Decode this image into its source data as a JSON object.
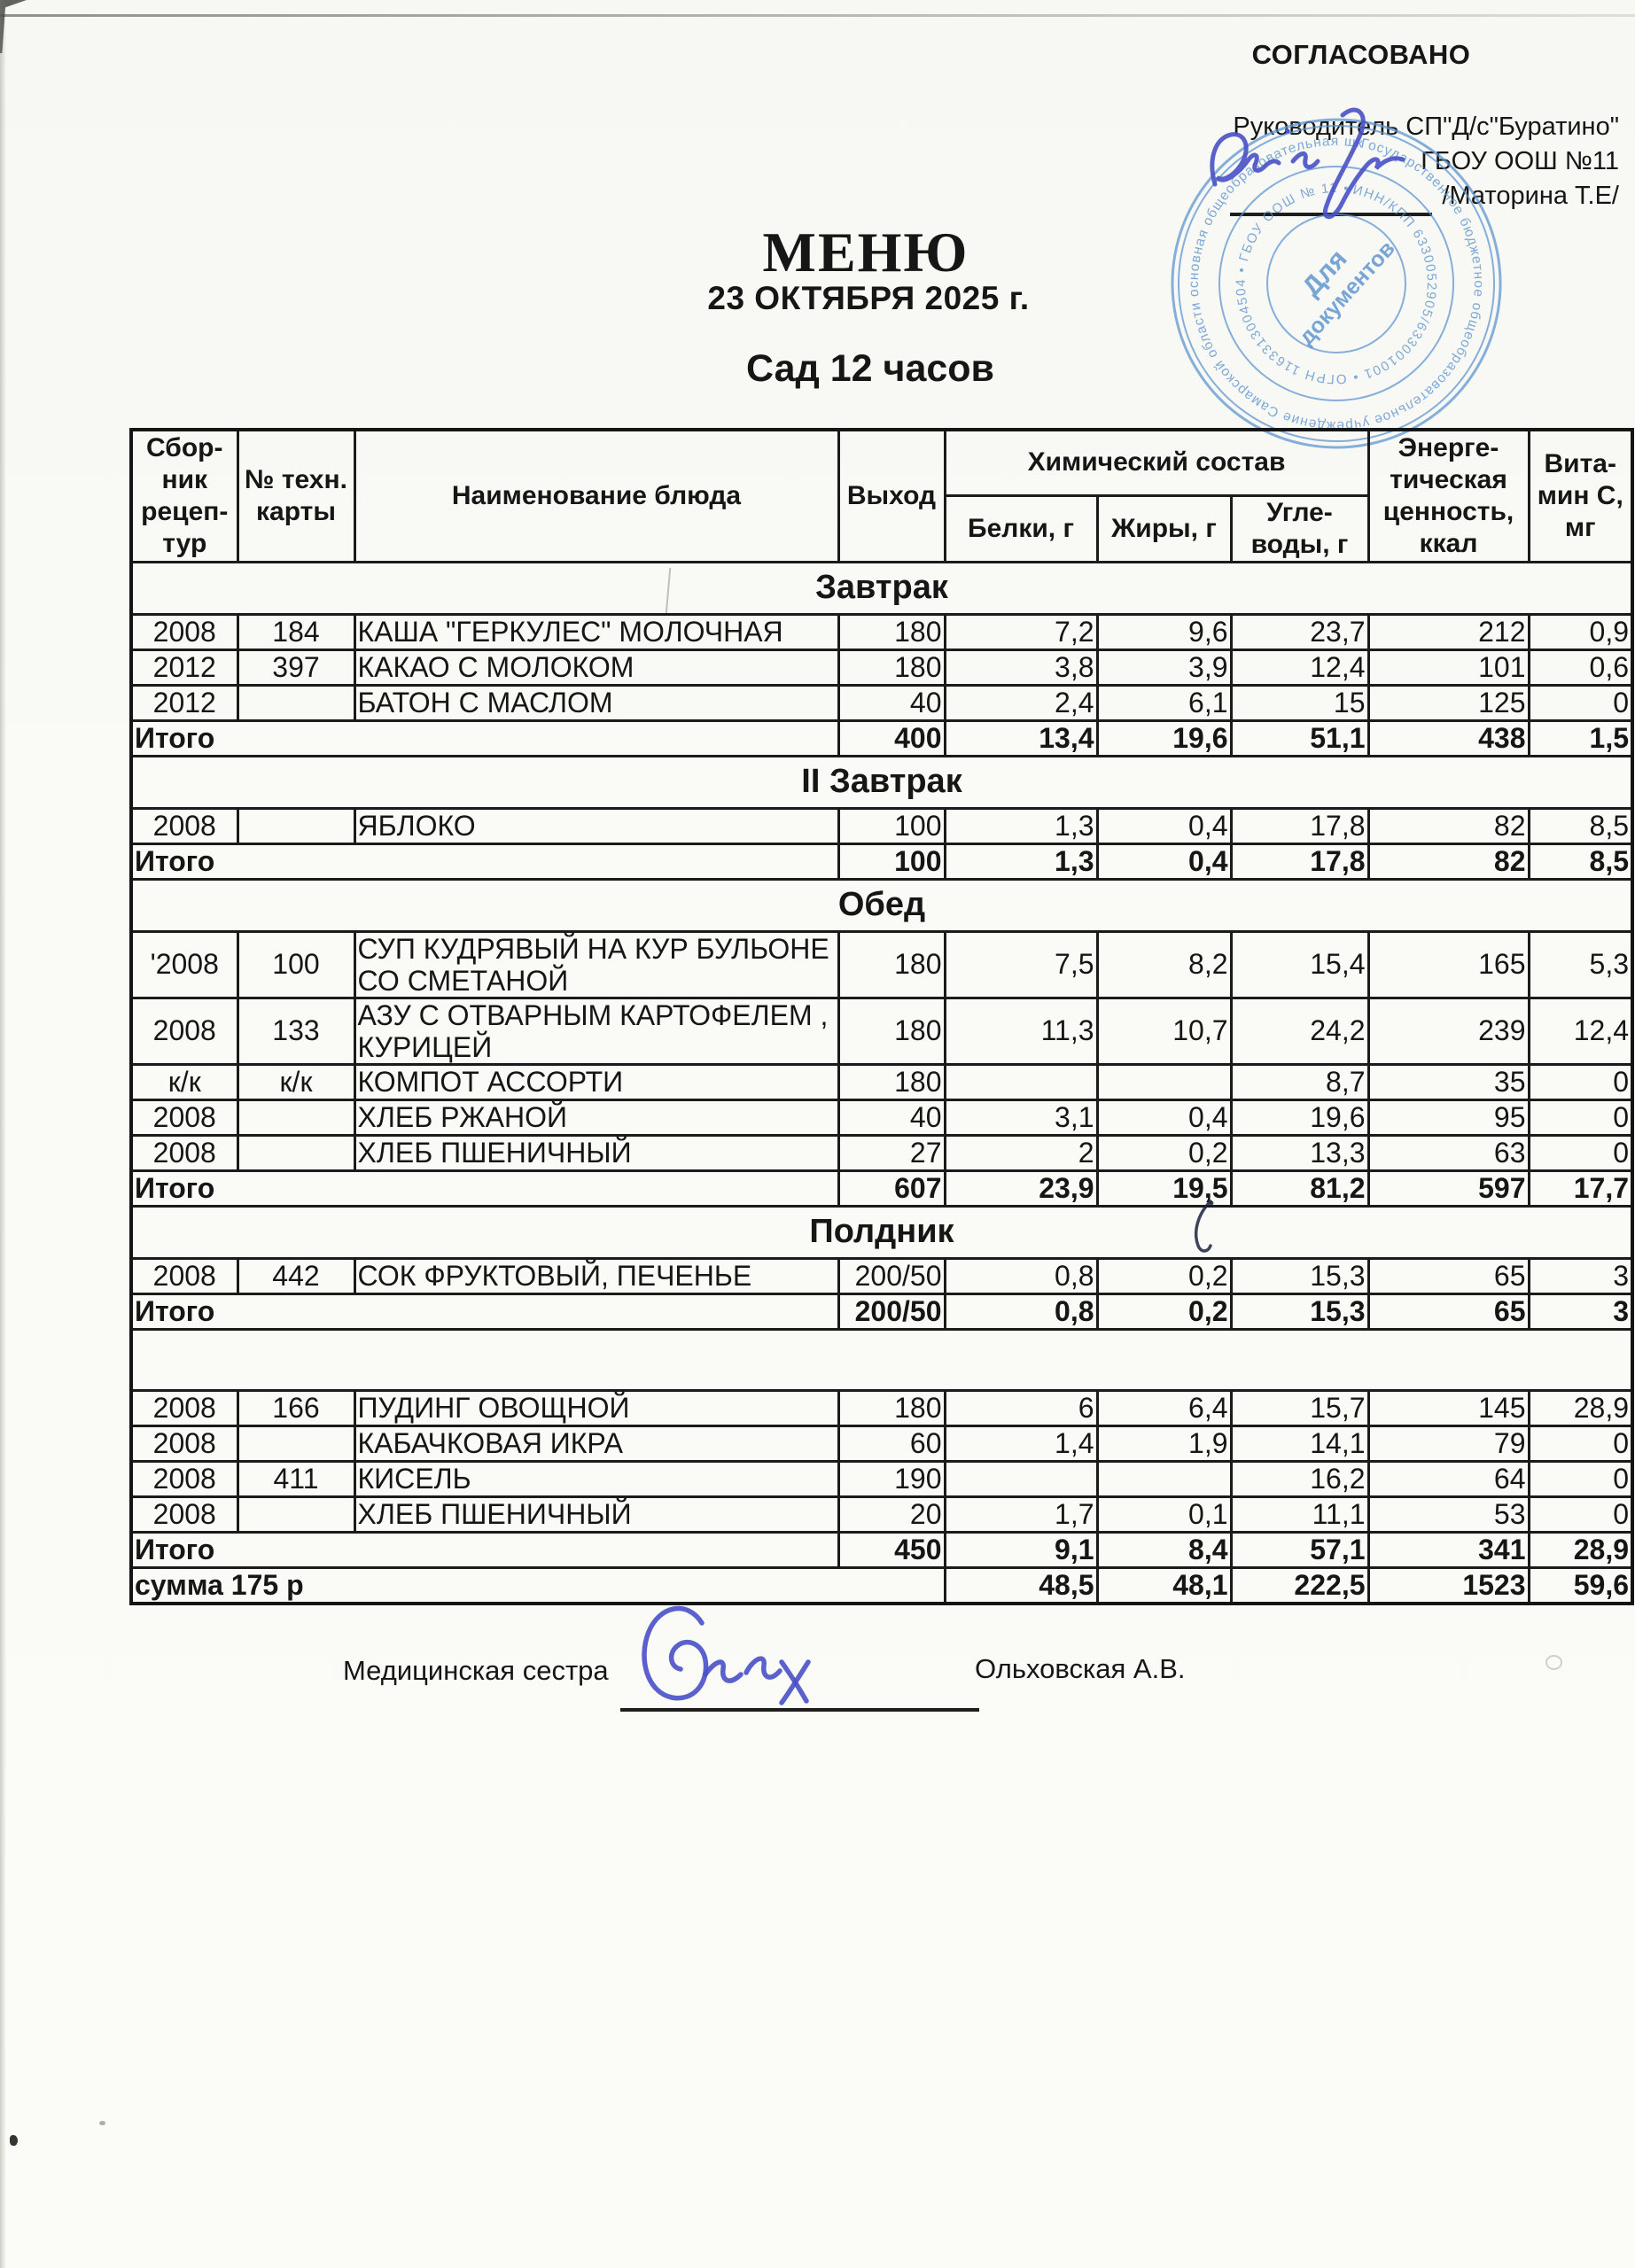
{
  "approval": {
    "approved_label": "СОГЛАСОВАНО",
    "head_line1": "Руководитель СП\"Д/с\"Буратино\"",
    "head_line2": "ГБОУ ООШ №11",
    "head_line3": "/Маторина Т.Е/"
  },
  "title": {
    "menu": "МЕНЮ",
    "date": "23 ОКТЯБРЯ  2025 г.",
    "group": "Сад 12 часов"
  },
  "stamp": {
    "ring_text_outer": "Государственное бюджетное общеобразовательное учреждение Самарской области основная общеобразовательная школа имени Героев воинов-интернационалистов города Новокуйбышевска • ",
    "ring_text_inner": "ИНН/КПП 6330052905/633001001 • ОГРН 1163313004504 • ГБОУ ООШ № 11 • ",
    "center_line1": "Для",
    "center_line2": "документов",
    "ink_color": "#5b93cf"
  },
  "signature_ink_color": "#4950c6",
  "table": {
    "header": {
      "col_recipe": "Сбор-\nник\nрецеп-\nтур",
      "col_card": "№ техн.\nкарты",
      "col_dish": "Наименование блюда",
      "col_out": "Выход",
      "col_chem": "Химический состав",
      "col_protein": "Белки, г",
      "col_fat": "Жиры, г",
      "col_carbs": "Угле-\nводы, г",
      "col_energy": "Энерге-\nтическая\nценность,\nккал",
      "col_vitc": "Вита-\nмин С,\nмг"
    },
    "itogo_label": "Итого",
    "sections": [
      {
        "title": "Завтрак",
        "rows": [
          {
            "src": "2008",
            "card": "184",
            "dish": "КАША  \"ГЕРКУЛЕС\" МОЛОЧНАЯ",
            "out": "180",
            "protein": "7,2",
            "fat": "9,6",
            "carbs": "23,7",
            "kcal": "212",
            "vitc": "0,9"
          },
          {
            "src": "2012",
            "card": "397",
            "dish": "КАКАО С МОЛОКОМ",
            "out": "180",
            "protein": "3,8",
            "fat": "3,9",
            "carbs": "12,4",
            "kcal": "101",
            "vitc": "0,6"
          },
          {
            "src": "2012",
            "card": "",
            "dish": "БАТОН С МАСЛОМ",
            "out": "40",
            "protein": "2,4",
            "fat": "6,1",
            "carbs": "15",
            "kcal": "125",
            "vitc": "0"
          }
        ],
        "total": {
          "out": "400",
          "protein": "13,4",
          "fat": "19,6",
          "carbs": "51,1",
          "kcal": "438",
          "vitc": "1,5"
        }
      },
      {
        "title": "II Завтрак",
        "rows": [
          {
            "src": "2008",
            "card": "",
            "dish": "ЯБЛОКО",
            "out": "100",
            "protein": "1,3",
            "fat": "0,4",
            "carbs": "17,8",
            "kcal": "82",
            "vitc": "8,5"
          }
        ],
        "total": {
          "out": "100",
          "protein": "1,3",
          "fat": "0,4",
          "carbs": "17,8",
          "kcal": "82",
          "vitc": "8,5"
        }
      },
      {
        "title": "Обед",
        "rows": [
          {
            "src": "'2008",
            "card": "100",
            "dish": "СУП КУДРЯВЫЙ НА КУР  БУЛЬОНЕ СО СМЕТАНОЙ",
            "out": "180",
            "protein": "7,5",
            "fat": "8,2",
            "carbs": "15,4",
            "kcal": "165",
            "vitc": "5,3",
            "tall": true
          },
          {
            "src": "2008",
            "card": "133",
            "dish": "АЗУ С ОТВАРНЫМ КАРТОФЕЛЕМ , КУРИЦЕЙ",
            "out": "180",
            "protein": "11,3",
            "fat": "10,7",
            "carbs": "24,2",
            "kcal": "239",
            "vitc": "12,4",
            "tall": true
          },
          {
            "src": "к/к",
            "card": "к/к",
            "dish": "КОМПОТ АССОРТИ",
            "out": "180",
            "protein": "",
            "fat": "",
            "carbs": "8,7",
            "kcal": "35",
            "vitc": "0"
          },
          {
            "src": "2008",
            "card": "",
            "dish": "ХЛЕБ РЖАНОЙ",
            "out": "40",
            "protein": "3,1",
            "fat": "0,4",
            "carbs": "19,6",
            "kcal": "95",
            "vitc": "0"
          },
          {
            "src": "2008",
            "card": "",
            "dish": "ХЛЕБ ПШЕНИЧНЫЙ",
            "out": "27",
            "protein": "2",
            "fat": "0,2",
            "carbs": "13,3",
            "kcal": "63",
            "vitc": "0"
          }
        ],
        "total": {
          "out": "607",
          "protein": "23,9",
          "fat": "19,5",
          "carbs": "81,2",
          "kcal": "597",
          "vitc": "17,7"
        }
      },
      {
        "title": "Полдник",
        "rows": [
          {
            "src": "2008",
            "card": "442",
            "dish": "СОК ФРУКТОВЫЙ, ПЕЧЕНЬЕ",
            "out": "200/50",
            "protein": "0,8",
            "fat": "0,2",
            "carbs": "15,3",
            "kcal": "65",
            "vitc": "3"
          }
        ],
        "total": {
          "out": "200/50",
          "protein": "0,8",
          "fat": "0,2",
          "carbs": "15,3",
          "kcal": "65",
          "vitc": "3"
        }
      },
      {
        "title": "",
        "rows": [
          {
            "src": "2008",
            "card": "166",
            "dish": "ПУДИНГ ОВОЩНОЙ",
            "out": "180",
            "protein": "6",
            "fat": "6,4",
            "carbs": "15,7",
            "kcal": "145",
            "vitc": "28,9"
          },
          {
            "src": "2008",
            "card": "",
            "dish": "КАБАЧКОВАЯ ИКРА",
            "out": "60",
            "protein": "1,4",
            "fat": "1,9",
            "carbs": "14,1",
            "kcal": "79",
            "vitc": "0"
          },
          {
            "src": "2008",
            "card": "411",
            "dish": "КИСЕЛЬ",
            "out": "190",
            "protein": "",
            "fat": "",
            "carbs": "16,2",
            "kcal": "64",
            "vitc": "0"
          },
          {
            "src": "2008",
            "card": "",
            "dish": "ХЛЕБ ПШЕНИЧНЫЙ",
            "out": "20",
            "protein": "1,7",
            "fat": "0,1",
            "carbs": "11,1",
            "kcal": "53",
            "vitc": "0"
          }
        ],
        "total": {
          "out": "450",
          "protein": "9,1",
          "fat": "8,4",
          "carbs": "57,1",
          "kcal": "341",
          "vitc": "28,9"
        }
      }
    ],
    "summary": {
      "label": "сумма 175 р",
      "out": "",
      "protein": "48,5",
      "fat": "48,1",
      "carbs": "222,5",
      "kcal": "1523",
      "vitc": "59,6"
    }
  },
  "footer": {
    "nurse_label": "Медицинская сестра",
    "nurse_name": "Ольховская А.В."
  }
}
